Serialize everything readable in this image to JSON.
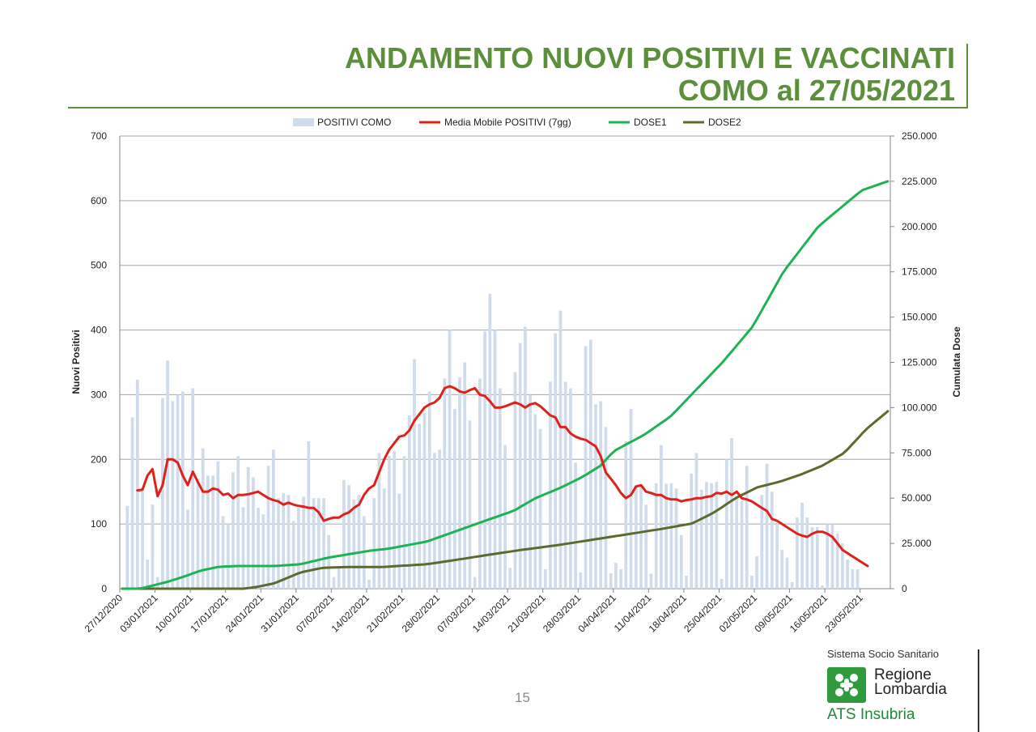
{
  "title": {
    "line1": "ANDAMENTO NUOVI POSITIVI E VACCINATI",
    "line2": "COMO al 27/05/2021"
  },
  "page_number": "15",
  "logo": {
    "org": "Sistema Socio Sanitario",
    "name_line1": "Regione",
    "name_line2": "Lombardia",
    "sub": "ATS Insubria",
    "icon": "lombardy-rose-icon"
  },
  "colors": {
    "title": "#5b8f3c",
    "positivi": "#cfdcec",
    "media": "#e0201b",
    "dose1": "#1db354",
    "dose2": "#5a6b2c"
  },
  "chart_data": {
    "type": "bar+line",
    "ylabel": "Nuovi Positivi",
    "y2label": "Cumulata Dose",
    "ylim": [
      0,
      700
    ],
    "y2lim": [
      0,
      250000
    ],
    "y_ticks": [
      "0",
      "100",
      "200",
      "300",
      "400",
      "500",
      "600",
      "700"
    ],
    "y2_ticks": [
      "0",
      "25.000",
      "50.000",
      "75.000",
      "100.000",
      "125.000",
      "150.000",
      "175.000",
      "200.000",
      "225.000",
      "250.000"
    ],
    "x_ticks": [
      "27/12/2020",
      "03/01/2021",
      "10/01/2021",
      "17/01/2021",
      "24/01/2021",
      "31/01/2021",
      "07/02/2021",
      "14/02/2021",
      "21/02/2021",
      "28/02/2021",
      "07/03/2021",
      "14/03/2021",
      "21/03/2021",
      "28/03/2021",
      "04/04/2021",
      "11/04/2021",
      "18/04/2021",
      "25/04/2021",
      "02/05/2021",
      "09/05/2021",
      "16/05/2021",
      "23/05/2021"
    ],
    "legend": [
      "POSITIVI COMO",
      "Media Mobile POSITIVI (7gg)",
      "DOSE1",
      "DOSE2"
    ],
    "legend_position": "top",
    "grid": true,
    "positivi": [
      0,
      128,
      265,
      323,
      155,
      45,
      130,
      18,
      295,
      353,
      290,
      300,
      305,
      122,
      310,
      170,
      217,
      175,
      175,
      197,
      112,
      100,
      180,
      205,
      126,
      188,
      172,
      125,
      115,
      190,
      215,
      140,
      148,
      145,
      105,
      125,
      142,
      228,
      140,
      140,
      140,
      83,
      18,
      35,
      168,
      160,
      138,
      145,
      112,
      14,
      140,
      210,
      155,
      205,
      213,
      147,
      205,
      268,
      355,
      255,
      272,
      305,
      210,
      215,
      325,
      400,
      278,
      327,
      350,
      260,
      18,
      325,
      398,
      456,
      400,
      310,
      222,
      32,
      335,
      380,
      405,
      300,
      270,
      247,
      30,
      320,
      395,
      430,
      320,
      310,
      195,
      25,
      375,
      385,
      285,
      290,
      250,
      24,
      40,
      30,
      228,
      278,
      160,
      160,
      130,
      23,
      163,
      222,
      162,
      163,
      155,
      83,
      20,
      178,
      210,
      153,
      165,
      163,
      165,
      15,
      200,
      233,
      140,
      135,
      190,
      20,
      50,
      145,
      193,
      150,
      100,
      60,
      48,
      10,
      110,
      133,
      110,
      95,
      95,
      5,
      100,
      100,
      85,
      70,
      45,
      30,
      30
    ],
    "media_mobile": [
      null,
      null,
      null,
      152,
      153,
      175,
      185,
      143,
      160,
      200,
      200,
      195,
      175,
      160,
      181,
      165,
      150,
      150,
      155,
      153,
      145,
      147,
      140,
      145,
      145,
      146,
      148,
      150,
      145,
      140,
      137,
      135,
      130,
      133,
      130,
      128,
      127,
      125,
      125,
      118,
      105,
      108,
      110,
      110,
      115,
      118,
      125,
      130,
      145,
      155,
      160,
      180,
      200,
      215,
      225,
      235,
      237,
      245,
      260,
      270,
      280,
      285,
      288,
      295,
      310,
      313,
      310,
      305,
      303,
      307,
      310,
      300,
      298,
      290,
      280,
      280,
      282,
      285,
      288,
      285,
      280,
      285,
      287,
      282,
      275,
      268,
      265,
      250,
      250,
      240,
      235,
      232,
      230,
      225,
      220,
      205,
      180,
      170,
      160,
      148,
      140,
      145,
      158,
      160,
      150,
      148,
      145,
      145,
      140,
      138,
      138,
      135,
      137,
      138,
      140,
      140,
      142,
      143,
      148,
      147,
      150,
      145,
      150,
      140,
      138,
      135,
      130,
      125,
      120,
      108,
      105,
      100,
      95,
      90,
      85,
      82,
      80,
      85,
      88,
      88,
      85,
      80,
      70,
      60,
      55,
      50,
      45,
      40,
      35
    ]
  }
}
